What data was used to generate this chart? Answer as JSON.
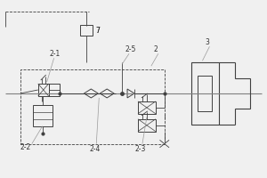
{
  "bg_color": "#f0f0f0",
  "line_color": "#808080",
  "dark_line": "#404040",
  "label_color": "#333333",
  "fig_width": 3.0,
  "fig_height": 2.0
}
